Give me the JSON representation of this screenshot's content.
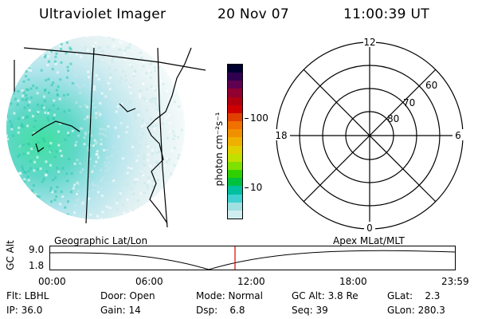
{
  "header": {
    "instrument": "Ultraviolet Imager",
    "date": "20 Nov 07",
    "time": "11:00:39 UT"
  },
  "colorbar": {
    "unit_label": "photon cm⁻²s⁻¹",
    "ticks": [
      "100",
      "10"
    ],
    "colors": [
      "#000030",
      "#300050",
      "#600050",
      "#900030",
      "#b00010",
      "#d00000",
      "#e04000",
      "#f07000",
      "#f09000",
      "#f0b000",
      "#e0d000",
      "#c0e000",
      "#80e000",
      "#30d000",
      "#00c040",
      "#00c0a0",
      "#40d0d0",
      "#a0e0e0",
      "#d0eef0"
    ]
  },
  "polar_plot": {
    "labels": {
      "top": "12",
      "bottom": "0",
      "left": "18",
      "right": "6"
    },
    "lat_labels": [
      "80",
      "70",
      "60"
    ]
  },
  "timeline": {
    "ylabel": "GC Alt",
    "ytick_top": "9.0",
    "ytick_bottom": "1.8",
    "left_label": "Geographic Lat/Lon",
    "right_label": "Apex  MLat/MLT",
    "xticks": [
      "00:00",
      "06:00",
      "12:00",
      "18:00",
      "23:59"
    ]
  },
  "info": {
    "flt": "Flt: LBHL",
    "ip": "IP: 36.0",
    "door": "Door: Open",
    "gain": "Gain: 14",
    "mode": "Mode: Normal",
    "dsp": "Dsp:    6.8",
    "gcalt": "GC Alt: 3.8 Re",
    "seq": "Seq: 39",
    "glat": "GLat:    2.3",
    "glon": "GLon: 280.3"
  }
}
